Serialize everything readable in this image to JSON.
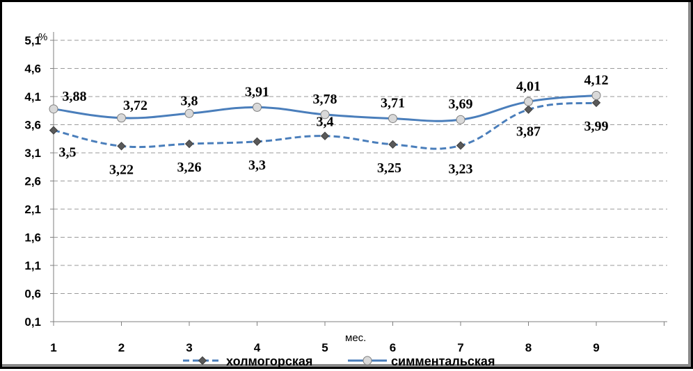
{
  "chart_data": {
    "type": "line",
    "ylabel": "%",
    "xlabel": "мес.",
    "categories": [
      "1",
      "2",
      "3",
      "4",
      "5",
      "6",
      "7",
      "8",
      "9"
    ],
    "y_ticks": [
      "0,1",
      "0,6",
      "1,1",
      "1,6",
      "2,1",
      "2,6",
      "3,1",
      "3,6",
      "4,1",
      "4,6",
      "5,1"
    ],
    "ylim": [
      0.1,
      5.1
    ],
    "grid": "horizontal dashed",
    "legend_position": "bottom",
    "series": [
      {
        "name": "холмогорская",
        "values": [
          3.5,
          3.22,
          3.26,
          3.3,
          3.4,
          3.25,
          3.23,
          3.87,
          3.99
        ],
        "labels": [
          "3,5",
          "3,22",
          "3,26",
          "3,3",
          "3,4",
          "3,25",
          "3,23",
          "3,87",
          "3,99"
        ],
        "color": "#4a7ebb",
        "line_style": "dashed",
        "marker": "diamond",
        "marker_color": "#595959"
      },
      {
        "name": "симментальская",
        "values": [
          3.88,
          3.72,
          3.8,
          3.91,
          3.78,
          3.71,
          3.69,
          4.01,
          4.12
        ],
        "labels": [
          "3,88",
          "3,72",
          "3,8",
          "3,91",
          "3,78",
          "3,71",
          "3,69",
          "4,01",
          "4,12"
        ],
        "color": "#4a7ebb",
        "line_style": "solid",
        "marker": "circle",
        "marker_color": "#d9d9d9"
      }
    ]
  }
}
